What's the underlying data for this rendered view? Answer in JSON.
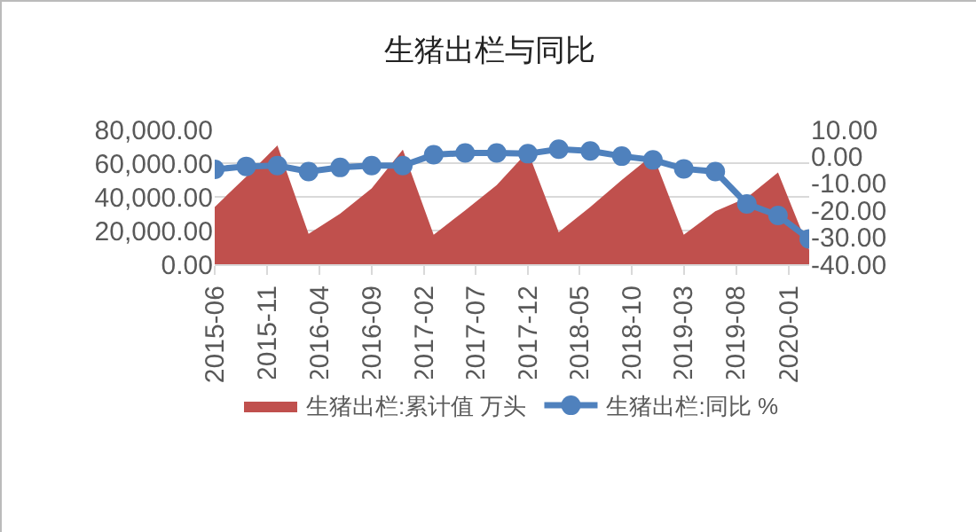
{
  "chart_data": {
    "type": "area",
    "title": "生猪出栏与同比",
    "x": [
      "2015-06",
      "2015-09",
      "2015-12",
      "2016-03",
      "2016-06",
      "2016-09",
      "2016-12",
      "2017-03",
      "2017-06",
      "2017-09",
      "2017-12",
      "2018-03",
      "2018-06",
      "2018-09",
      "2018-12",
      "2019-03",
      "2019-06",
      "2019-09",
      "2019-12",
      "2020-03"
    ],
    "series": [
      {
        "name": "生猪出栏:累计值 万头",
        "color": "#c0504d",
        "values": [
          34000,
          52000,
          70500,
          18000,
          30000,
          45000,
          68000,
          17500,
          32000,
          47000,
          67000,
          19000,
          34000,
          50000,
          65000,
          17500,
          31500,
          39500,
          54500,
          8500
        ]
      },
      {
        "name": "生猪出栏:同比 %",
        "type": "line",
        "axis": "y2",
        "color": "#4f81bd",
        "marker": "circle",
        "values": [
          -4.8,
          -3.7,
          -3.4,
          -5.6,
          -4.1,
          -3.4,
          -3.4,
          0.6,
          1.3,
          1.3,
          1.0,
          2.7,
          2.0,
          0.1,
          -1.3,
          -4.6,
          -5.6,
          -17.6,
          -21.9,
          -30.6
        ]
      }
    ],
    "xlim": [
      "2015-06",
      "2020-03"
    ],
    "xticks": [
      "2015-06",
      "2015-11",
      "2016-04",
      "2016-09",
      "2017-02",
      "2017-07",
      "2017-12",
      "2018-05",
      "2018-10",
      "2019-03",
      "2019-08",
      "2020-01"
    ],
    "ylim": [
      0,
      80000
    ],
    "yticks": [
      {
        "value": 0,
        "label": "0.00"
      },
      {
        "value": 20000,
        "label": "20,000.00"
      },
      {
        "value": 40000,
        "label": "40,000.00"
      },
      {
        "value": 60000,
        "label": "60,000.00"
      },
      {
        "value": 80000,
        "label": "80,000.00"
      }
    ],
    "y2lim": [
      -40,
      10
    ],
    "y2ticks": [
      {
        "value": -40,
        "label": "-40.00"
      },
      {
        "value": -30,
        "label": "-30.00"
      },
      {
        "value": -20,
        "label": "-20.00"
      },
      {
        "value": -10,
        "label": "-10.00"
      },
      {
        "value": 0,
        "label": "0.00"
      },
      {
        "value": 10,
        "label": "10.00"
      }
    ],
    "grid": "y",
    "legend": "bottom"
  }
}
